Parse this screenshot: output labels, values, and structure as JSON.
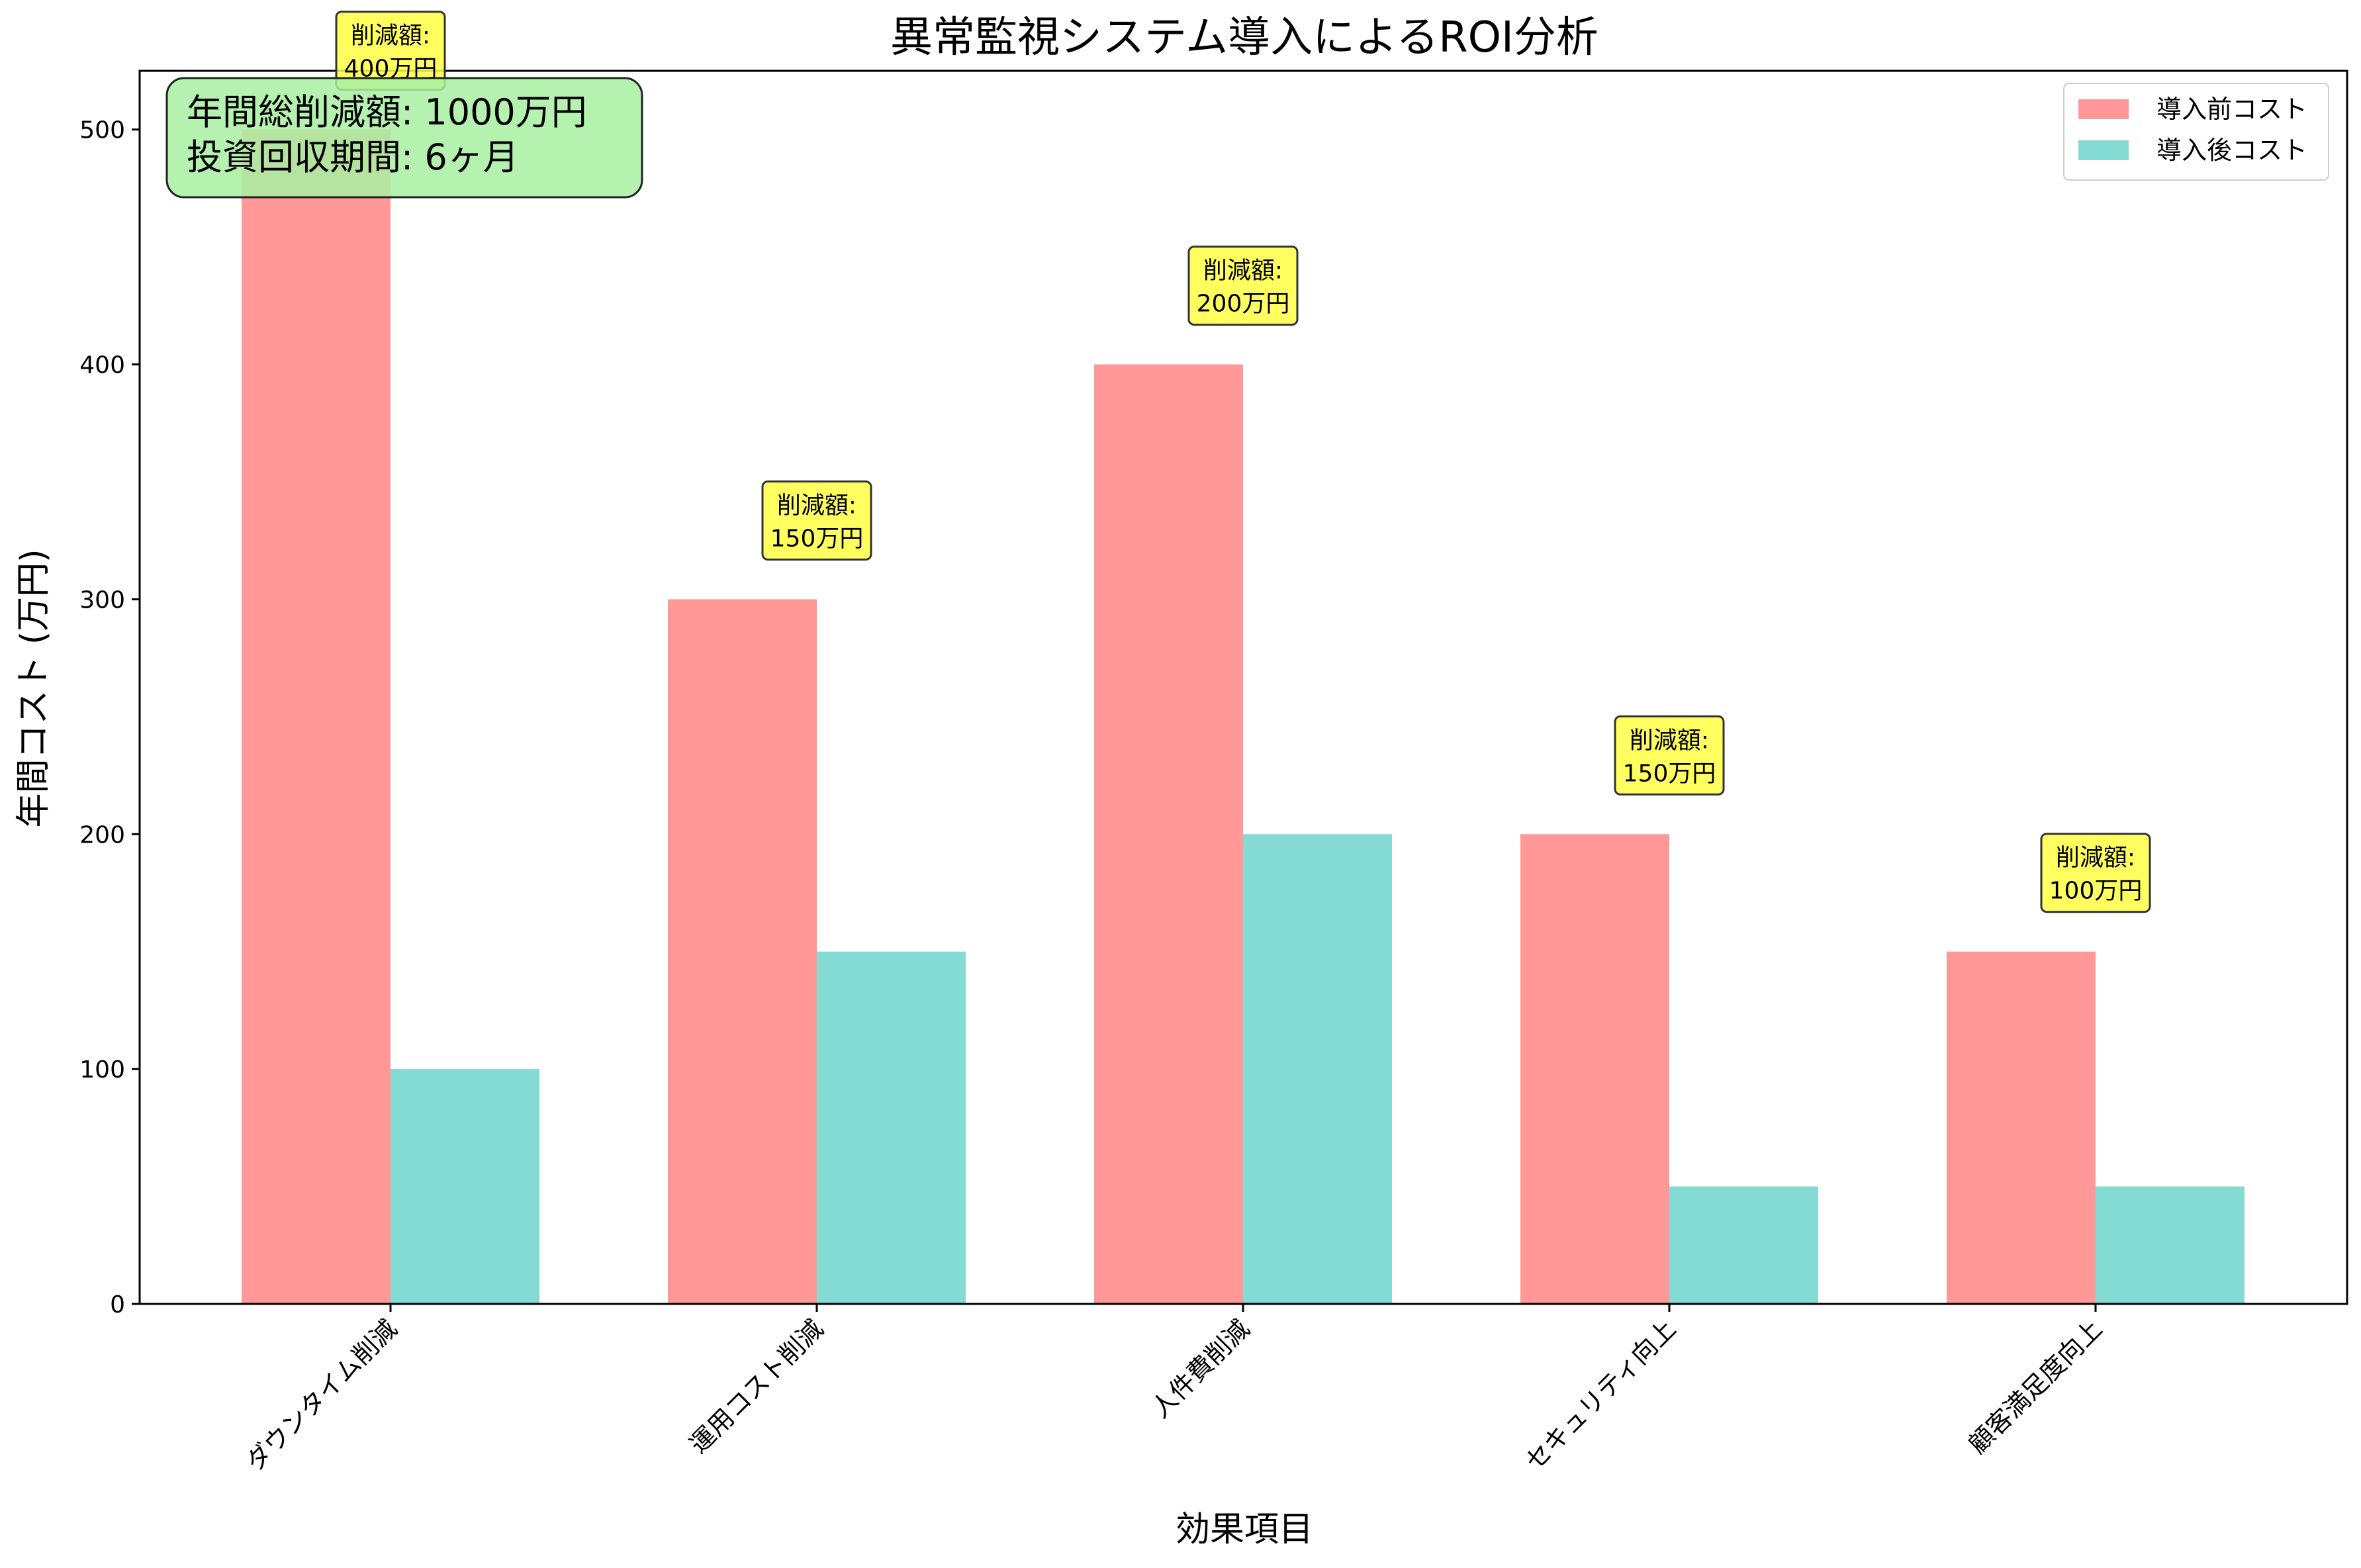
{
  "chart_data": {
    "type": "bar",
    "title": "異常監視システム導入によるROI分析",
    "xlabel": "効果項目",
    "ylabel": "年間コスト (万円)",
    "categories": [
      "ダウンタイム削減",
      "運用コスト削減",
      "人件費削減",
      "セキュリティ向上",
      "顧客満足度向上"
    ],
    "series": [
      {
        "name": "導入前コスト",
        "values": [
          500,
          300,
          400,
          200,
          150
        ],
        "color": "#ff9896"
      },
      {
        "name": "導入後コスト",
        "values": [
          100,
          150,
          200,
          50,
          50
        ],
        "color": "#83dbd4"
      }
    ],
    "ylim": [
      0,
      525
    ],
    "yticks": [
      0,
      100,
      200,
      300,
      400,
      500
    ],
    "annotations": [
      {
        "line1": "削減額:",
        "line2": "400万円"
      },
      {
        "line1": "削減額:",
        "line2": "150万円"
      },
      {
        "line1": "削減額:",
        "line2": "200万円"
      },
      {
        "line1": "削減額:",
        "line2": "150万円"
      },
      {
        "line1": "削減額:",
        "line2": "100万円"
      }
    ],
    "annotation_color": "#ffff44",
    "summary": {
      "line1": "年間総削減額: 1000万円",
      "line2": "投資回収期間: 6ヶ月",
      "color": "#a8f0a2"
    },
    "legend_position": "top-right",
    "grid": false
  }
}
